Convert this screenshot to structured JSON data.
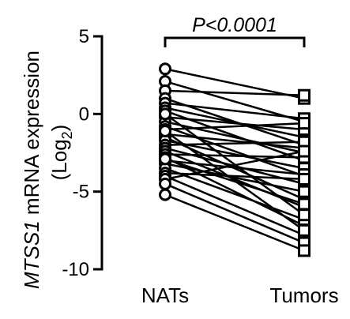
{
  "chart_data": {
    "type": "paired-scatter",
    "categories": [
      "NATs",
      "Tumors"
    ],
    "ylabel_gene": "MTSS1",
    "ylabel_rest": " mRNA expression",
    "ylabel_line2_prefix": "(Log",
    "ylabel_line2_sub": "2",
    "ylabel_line2_suffix": ")",
    "ylim": [
      -10,
      5
    ],
    "yticks": [
      5,
      0,
      -5,
      -10
    ],
    "ytick_labels": [
      "5",
      "0",
      "-5",
      "-10"
    ],
    "significance": {
      "p_italic": "P",
      "p_rest": "<0.0001"
    },
    "markers": {
      "NATs": "circle",
      "Tumors": "square"
    },
    "pairs": [
      [
        2.9,
        1.0
      ],
      [
        2.1,
        -0.5
      ],
      [
        1.5,
        1.2
      ],
      [
        1.0,
        -2.0
      ],
      [
        0.7,
        -0.3
      ],
      [
        0.4,
        -1.5
      ],
      [
        0.2,
        -3.0
      ],
      [
        -0.2,
        -1.0
      ],
      [
        -0.5,
        -2.5
      ],
      [
        -0.8,
        -4.0
      ],
      [
        -1.0,
        -0.6
      ],
      [
        -1.3,
        -2.2
      ],
      [
        -1.5,
        -5.5
      ],
      [
        -1.7,
        -3.5
      ],
      [
        -2.0,
        -1.8
      ],
      [
        -2.2,
        -4.5
      ],
      [
        -2.4,
        -6.0
      ],
      [
        -2.6,
        -2.8
      ],
      [
        -2.8,
        -7.2
      ],
      [
        -3.0,
        -3.9
      ],
      [
        -3.2,
        -5.0
      ],
      [
        -3.5,
        -6.8
      ],
      [
        -3.8,
        -4.2
      ],
      [
        -4.0,
        -7.8
      ],
      [
        -4.2,
        -2.4
      ],
      [
        -4.5,
        -8.3
      ],
      [
        -5.2,
        -8.8
      ],
      [
        0.0,
        -6.5
      ],
      [
        -1.1,
        -7.5
      ],
      [
        -2.9,
        -5.8
      ]
    ]
  }
}
